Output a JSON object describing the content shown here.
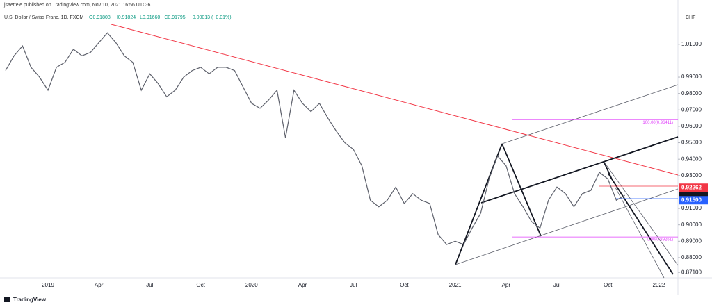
{
  "chart_data": {
    "type": "line",
    "header": "jsaettele published on TradingView.com, Nov 10, 2021 16:56 UTC-6",
    "title": "U.S. Dollar / Swiss Franc, 1D, FXCM",
    "ohlc": [
      "O0.91808",
      "H0.91824",
      "L0.91660",
      "C0.91795",
      "−0.00013 (−0.01%)"
    ],
    "currency": "CHF",
    "footer": "TradingView",
    "categories": [
      null,
      null,
      null,
      null,
      null,
      "2019",
      null,
      null,
      null,
      null,
      null,
      "Apr",
      null,
      null,
      null,
      null,
      null,
      "Jul",
      null,
      null,
      null,
      null,
      null,
      "Oct",
      null,
      null,
      null,
      null,
      null,
      "2020",
      null,
      null,
      null,
      null,
      null,
      "Apr",
      null,
      null,
      null,
      null,
      null,
      "Jul",
      null,
      null,
      null,
      null,
      null,
      "Oct",
      null,
      null,
      null,
      null,
      null,
      "2021",
      null,
      null,
      null,
      null,
      null,
      "Apr",
      null,
      null,
      null,
      null,
      null,
      "Jul",
      null,
      null,
      null,
      null,
      null,
      "Oct",
      null,
      null,
      null,
      null,
      null,
      "2022"
    ],
    "series": [
      {
        "name": "USDCHF",
        "color": "#5d606b",
        "values": [
          0.994,
          1.003,
          1.009,
          0.996,
          0.99,
          0.982,
          0.996,
          0.999,
          1.007,
          1.003,
          1.005,
          1.011,
          1.017,
          1.011,
          1.003,
          0.999,
          0.982,
          0.992,
          0.986,
          0.978,
          0.982,
          0.99,
          0.994,
          0.996,
          0.992,
          0.996,
          0.996,
          0.994,
          0.984,
          0.974,
          0.971,
          0.976,
          0.982,
          0.953,
          0.982,
          0.974,
          0.969,
          0.974,
          0.965,
          0.957,
          0.95,
          0.946,
          0.936,
          0.915,
          0.911,
          0.915,
          0.923,
          0.913,
          0.919,
          0.915,
          0.913,
          0.894,
          0.888,
          0.89,
          0.888,
          0.898,
          0.907,
          0.928,
          0.942,
          0.936,
          0.919,
          0.911,
          0.902,
          0.898,
          0.915,
          0.923,
          0.919,
          0.911,
          0.919,
          0.921,
          0.932,
          0.928,
          0.915,
          0.918,
          null,
          null,
          null,
          null
        ]
      }
    ],
    "ylim": [
      0.8677,
      1.037
    ],
    "yticks": [
      {
        "value": 1.01,
        "label": "1.01000"
      },
      {
        "value": 0.99,
        "label": "0.99000"
      },
      {
        "value": 0.98,
        "label": "0.98000"
      },
      {
        "value": 0.97,
        "label": "0.97000"
      },
      {
        "value": 0.96,
        "label": "0.96000"
      },
      {
        "value": 0.95,
        "label": "0.95000"
      },
      {
        "value": 0.94,
        "label": "0.94000"
      },
      {
        "value": 0.93,
        "label": "0.93000"
      },
      {
        "value": 0.91,
        "label": "0.91000"
      },
      {
        "value": 0.9,
        "label": "0.90000"
      },
      {
        "value": 0.89,
        "label": "0.89000"
      },
      {
        "value": 0.88,
        "label": "0.88000"
      },
      {
        "value": 0.871,
        "label": "0.87100"
      }
    ],
    "price_labels": [
      {
        "value": 0.92262,
        "label": "0.92262",
        "color": "#f23645"
      },
      {
        "value": 0.915,
        "label": "0.91500",
        "color": "#2962ff"
      }
    ],
    "annotations": [
      {
        "value": 0.96411,
        "label": "100.00(0.96411)"
      },
      {
        "value": 0.89261,
        "label": "0.00(0.89261)"
      }
    ],
    "grid": false
  }
}
